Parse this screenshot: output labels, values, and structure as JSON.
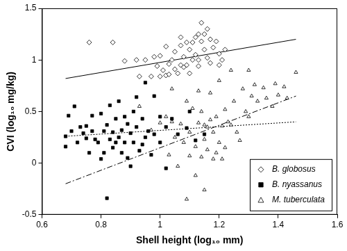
{
  "chart_data": {
    "type": "scatter",
    "x_label": "Shell height (log₁₀ mm)",
    "y_label": "CVI (log₁₀ mg/kg)",
    "xlim": [
      0.6,
      1.6
    ],
    "xticks": [
      0.6,
      0.8,
      1,
      1.2,
      1.4,
      1.6
    ],
    "ylim": [
      -0.5,
      1.5
    ],
    "yticks": [
      -0.5,
      0,
      0.5,
      1,
      1.5
    ],
    "grid": false,
    "legend": "lower right",
    "series": [
      {
        "name": "B. globosus",
        "color": "#000000",
        "marker": "open_diamond",
        "line_style": "solid",
        "x": [
          0.76,
          0.84,
          0.88,
          0.92,
          0.93,
          0.95,
          0.97,
          0.98,
          0.99,
          1.0,
          1.01,
          1.02,
          1.03,
          1.03,
          1.04,
          1.05,
          1.05,
          1.06,
          1.07,
          1.07,
          1.08,
          1.08,
          1.09,
          1.09,
          1.1,
          1.1,
          1.11,
          1.11,
          1.12,
          1.12,
          1.13,
          1.13,
          1.14,
          1.14,
          1.15,
          1.15,
          1.16,
          1.16,
          1.17,
          1.17,
          1.18,
          1.19,
          1.2,
          1.2,
          1.21,
          1.22,
          1.13,
          1.07,
          1.0,
          1.02
        ],
        "values": [
          1.17,
          1.17,
          0.99,
          1.0,
          0.84,
          1.0,
          0.84,
          1.03,
          0.94,
          0.84,
          0.9,
          0.85,
          0.86,
          0.96,
          1.0,
          0.91,
          1.08,
          0.87,
          0.95,
          1.14,
          0.93,
          1.03,
          1.17,
          0.95,
          1.1,
          0.87,
          1.0,
          1.17,
          1.22,
          1.05,
          1.0,
          1.25,
          1.36,
          1.18,
          1.25,
          1.1,
          1.02,
          1.3,
          0.97,
          1.2,
          1.12,
          1.18,
          0.95,
          1.06,
          1.0,
          1.1,
          0.94,
          1.22,
          1.04,
          1.13
        ],
        "fit": {
          "x": [
            0.68,
            1.46
          ],
          "y": [
            0.82,
            1.2
          ]
        }
      },
      {
        "name": "B. nyassanus",
        "color": "#000000",
        "marker": "filled_square",
        "line_style": "dotted",
        "x": [
          0.68,
          0.68,
          0.69,
          0.7,
          0.71,
          0.72,
          0.73,
          0.74,
          0.75,
          0.75,
          0.76,
          0.77,
          0.77,
          0.78,
          0.79,
          0.8,
          0.8,
          0.81,
          0.81,
          0.82,
          0.82,
          0.83,
          0.83,
          0.84,
          0.84,
          0.85,
          0.85,
          0.86,
          0.86,
          0.87,
          0.87,
          0.88,
          0.88,
          0.89,
          0.89,
          0.9,
          0.9,
          0.91,
          0.91,
          0.92,
          0.92,
          0.93,
          0.94,
          0.95,
          0.95,
          0.96,
          0.97,
          0.98,
          0.98,
          1.0,
          1.0,
          1.02,
          1.04,
          1.06,
          1.09,
          1.1,
          1.12,
          1.15,
          1.02,
          0.94
        ],
        "values": [
          0.26,
          0.16,
          0.46,
          0.31,
          0.55,
          0.2,
          0.35,
          0.29,
          0.24,
          0.36,
          0.1,
          0.31,
          0.46,
          0.23,
          0.2,
          0.48,
          0.04,
          0.31,
          0.1,
          -0.34,
          0.37,
          0.23,
          0.56,
          0.3,
          0.15,
          0.43,
          0.2,
          0.25,
          0.6,
          0.32,
          0.1,
          0.2,
          0.45,
          0.38,
          0.05,
          0.29,
          -0.03,
          0.5,
          0.2,
          0.64,
          0.35,
          0.12,
          0.43,
          0.78,
          0.25,
          0.31,
          0.08,
          0.65,
          0.28,
          0.45,
          0.2,
          0.35,
          0.43,
          0.28,
          0.34,
          0.5,
          0.22,
          0.28,
          -0.05,
          0.18
        ],
        "fit": {
          "x": [
            0.68,
            1.46
          ],
          "y": [
            0.26,
            0.4
          ]
        }
      },
      {
        "name": "M. tuberculata",
        "color": "#000000",
        "marker": "open_triangle",
        "line_style": "dashdot",
        "x": [
          0.93,
          0.97,
          1.0,
          1.02,
          1.03,
          1.04,
          1.05,
          1.06,
          1.07,
          1.08,
          1.09,
          1.09,
          1.1,
          1.1,
          1.11,
          1.12,
          1.12,
          1.13,
          1.13,
          1.14,
          1.14,
          1.15,
          1.15,
          1.16,
          1.16,
          1.17,
          1.17,
          1.18,
          1.18,
          1.19,
          1.19,
          1.2,
          1.2,
          1.21,
          1.21,
          1.22,
          1.22,
          1.23,
          1.24,
          1.24,
          1.25,
          1.26,
          1.27,
          1.28,
          1.29,
          1.3,
          1.31,
          1.32,
          1.33,
          1.35,
          1.36,
          1.38,
          1.39,
          1.4,
          1.42,
          1.43,
          1.46,
          1.3,
          1.04,
          1.15
        ],
        "values": [
          0.55,
          0.32,
          0.39,
          0.45,
          0.08,
          0.4,
          0.25,
          -0.03,
          0.38,
          0.2,
          0.6,
          -0.35,
          0.07,
          0.3,
          0.53,
          0.16,
          -0.12,
          0.39,
          0.7,
          0.06,
          0.5,
          0.23,
          -0.26,
          0.35,
          0.13,
          0.42,
          0.68,
          0.04,
          0.3,
          0.1,
          0.45,
          0.2,
          0.8,
          0.36,
          0.04,
          0.52,
          0.15,
          0.4,
          0.9,
          0.37,
          0.6,
          0.3,
          0.22,
          0.72,
          0.5,
          0.45,
          0.65,
          0.76,
          0.6,
          0.73,
          0.63,
          0.55,
          0.77,
          0.66,
          0.74,
          0.63,
          0.88,
          0.9,
          0.72,
          0.37
        ],
        "fit": {
          "x": [
            0.68,
            1.46
          ],
          "y": [
            -0.2,
            0.65
          ]
        }
      }
    ]
  }
}
